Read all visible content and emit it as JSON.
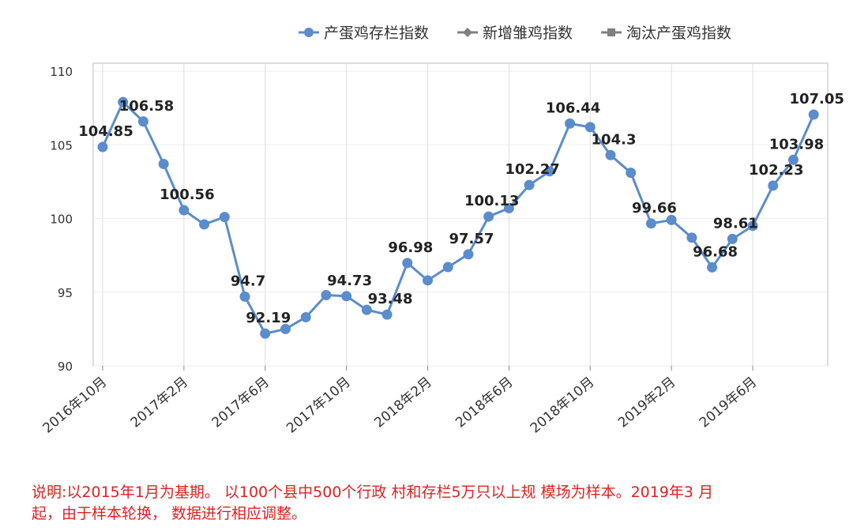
{
  "chart_data": {
    "type": "line",
    "categories": [
      "2016年10月",
      null,
      null,
      null,
      "2017年2月",
      null,
      null,
      null,
      "2017年6月",
      null,
      null,
      null,
      "2017年10月",
      null,
      null,
      null,
      "2018年2月",
      null,
      null,
      null,
      "2018年6月",
      null,
      null,
      null,
      "2018年10月",
      null,
      null,
      null,
      "2019年2月",
      null,
      null,
      null,
      "2019年6月",
      null,
      null,
      null
    ],
    "series": [
      {
        "name": "产蛋鸡存栏指数",
        "color": "#5b8ccc",
        "marker": "circle",
        "values": [
          104.85,
          107.9,
          106.58,
          103.7,
          100.56,
          99.6,
          100.1,
          94.7,
          92.19,
          92.5,
          93.3,
          94.8,
          94.73,
          93.8,
          93.48,
          96.98,
          95.8,
          96.7,
          97.57,
          100.13,
          100.7,
          102.27,
          103.2,
          106.44,
          106.2,
          104.3,
          103.1,
          99.66,
          99.9,
          98.7,
          96.68,
          98.61,
          99.5,
          102.23,
          103.98,
          107.05
        ],
        "value_labels": [
          "104.85",
          null,
          "106.58",
          null,
          "100.56",
          null,
          null,
          "94.7",
          "92.19",
          null,
          null,
          null,
          "94.73",
          null,
          "93.48",
          "96.98",
          null,
          null,
          "97.57",
          "100.13",
          null,
          "102.27",
          null,
          "106.44",
          null,
          "104.3",
          null,
          "99.66",
          null,
          null,
          "96.68",
          "98.61",
          null,
          "102.23",
          "103.98",
          "107.05"
        ]
      },
      {
        "name": "新增雏鸡指数",
        "color": "#7f7f7f",
        "marker": "diamond",
        "values": [
          null,
          null,
          null,
          null,
          null,
          null,
          null,
          null,
          null,
          null,
          null,
          null,
          null,
          null,
          null,
          null,
          null,
          null,
          null,
          null,
          null,
          null,
          null,
          null,
          null,
          null,
          null,
          null,
          null,
          null,
          null,
          null,
          null,
          null,
          null,
          null
        ]
      },
      {
        "name": "淘汰产蛋鸡指数",
        "color": "#7f7f7f",
        "marker": "square",
        "values": [
          null,
          null,
          null,
          null,
          null,
          null,
          null,
          null,
          null,
          null,
          null,
          null,
          null,
          null,
          null,
          null,
          null,
          null,
          null,
          null,
          null,
          null,
          null,
          null,
          null,
          null,
          null,
          null,
          null,
          null,
          null,
          null,
          null,
          null,
          null,
          null
        ]
      }
    ],
    "ylim": [
      90,
      110
    ],
    "yticks": [
      90,
      95,
      100,
      105,
      110
    ],
    "grid": true,
    "legend": "top-right",
    "notes": [
      "说明:以2015年1月为基期。 以100个县中500个行政 村和存栏5万只以上规 模场为样本。2019年3 月",
      "起，由于样本轮换， 数据进行相应调整。"
    ]
  }
}
